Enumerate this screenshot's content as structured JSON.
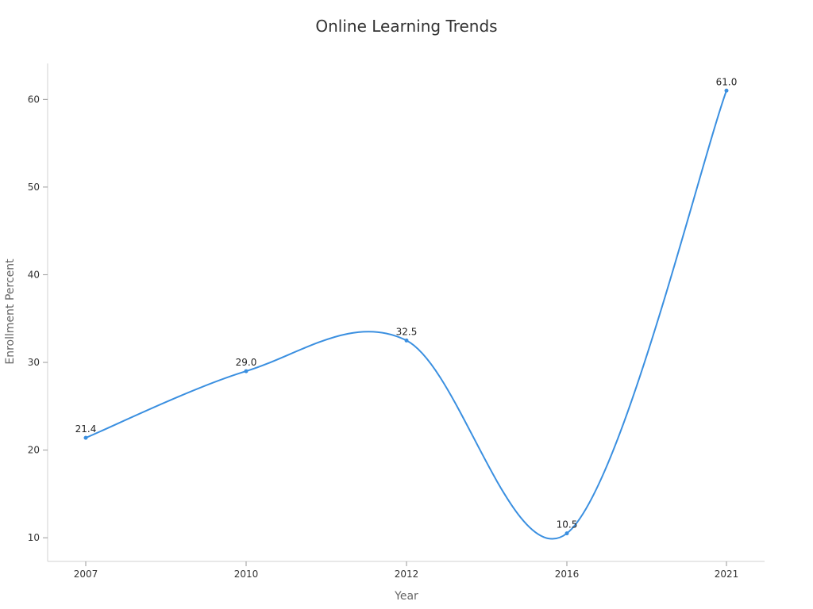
{
  "chart_data": {
    "type": "line",
    "title": "Online Learning Trends",
    "xlabel": "Year",
    "ylabel": "Enrollment Percent",
    "categories": [
      "2007",
      "2010",
      "2012",
      "2016",
      "2021"
    ],
    "series": [
      {
        "values": [
          21.4,
          29.0,
          32.5,
          10.5,
          61.0
        ]
      }
    ],
    "data_labels": [
      "21.4",
      "29.0",
      "32.5",
      "10.5",
      "61.0"
    ],
    "y_ticks": [
      10,
      20,
      30,
      40,
      50,
      60
    ],
    "ylim": [
      7.3,
      64.1
    ],
    "grid": false,
    "line_color": "#3a8fe0"
  }
}
